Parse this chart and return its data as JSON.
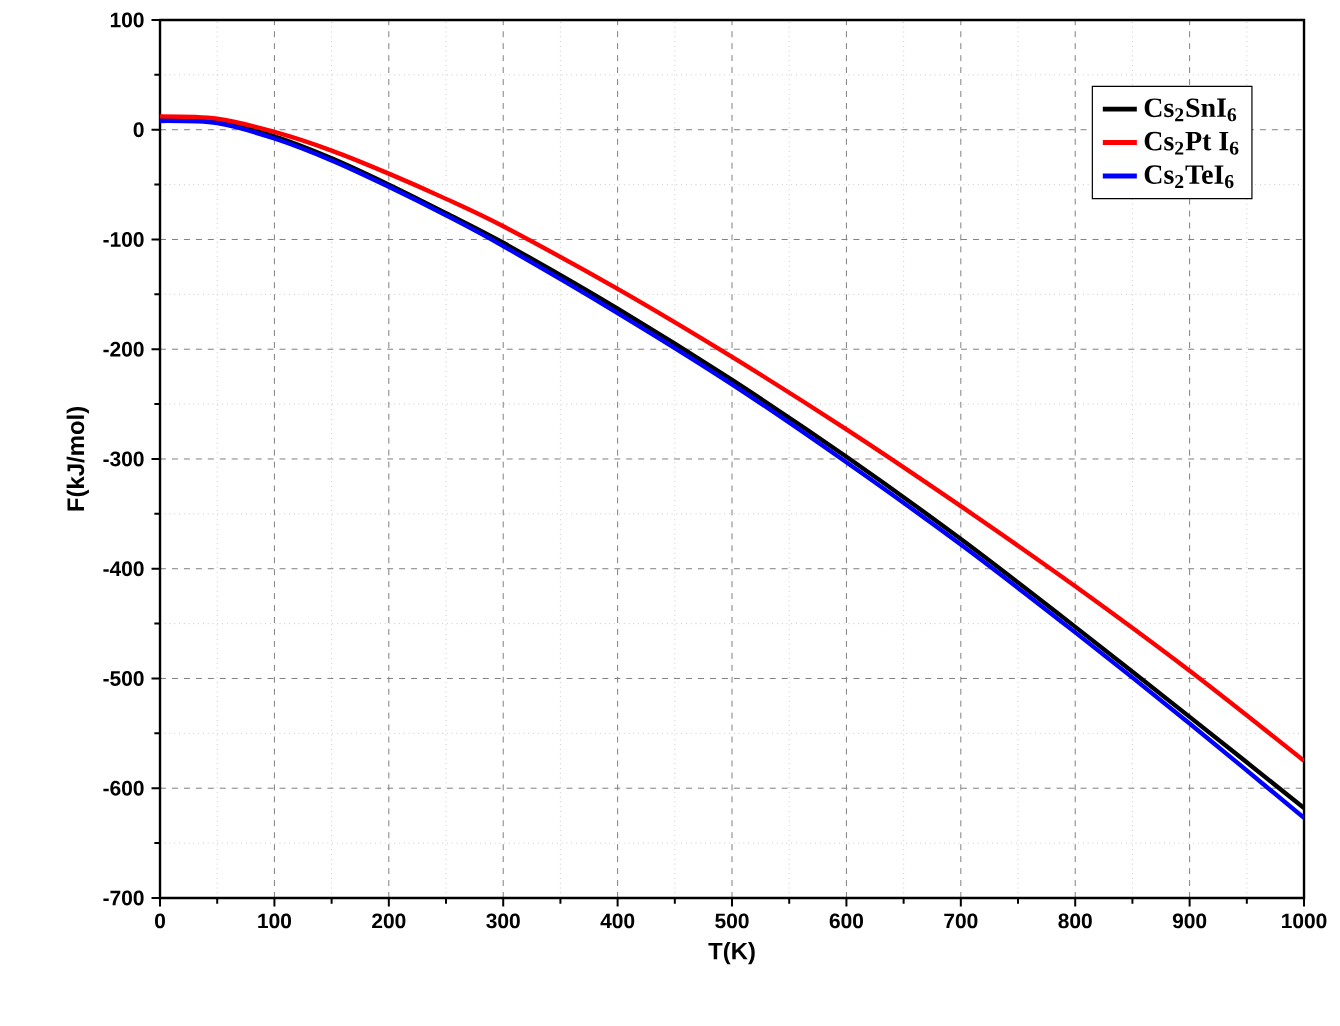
{
  "chart_data": {
    "type": "line",
    "xlabel": "T(K)",
    "ylabel": "F(kJ/mol)",
    "x": [
      0,
      50,
      100,
      150,
      200,
      250,
      300,
      400,
      500,
      600,
      700,
      800,
      900,
      1000
    ],
    "series": [
      {
        "name": "Cs$_{2}$SnI$_{6}$",
        "color": "#000000",
        "values": [
          10,
          8,
          -6,
          -26,
          -50,
          -76,
          -103,
          -163,
          -228,
          -298,
          -373,
          -453,
          -535,
          -618
        ]
      },
      {
        "name": "Cs$_{2}$Pt I$_{6}$",
        "color": "#ff0000",
        "values": [
          12,
          10,
          -2,
          -19,
          -40,
          -63,
          -88,
          -145,
          -207,
          -273,
          -343,
          -416,
          -493,
          -575
        ]
      },
      {
        "name": "Cs$_{2}$TeI$_{6}$",
        "color": "#0000ff",
        "values": [
          8,
          6,
          -8,
          -28,
          -52,
          -78,
          -106,
          -167,
          -232,
          -303,
          -378,
          -458,
          -541,
          -627
        ]
      }
    ],
    "xlim": [
      0,
      1000
    ],
    "xticks": [
      0,
      100,
      200,
      300,
      400,
      500,
      600,
      700,
      800,
      900,
      1000
    ],
    "ylim": [
      -700,
      100
    ],
    "yticks": [
      -700,
      -600,
      -500,
      -400,
      -300,
      -200,
      -100,
      0,
      100
    ],
    "grid": true,
    "legend": "top right",
    "line_style": "solid",
    "marker": "none"
  }
}
